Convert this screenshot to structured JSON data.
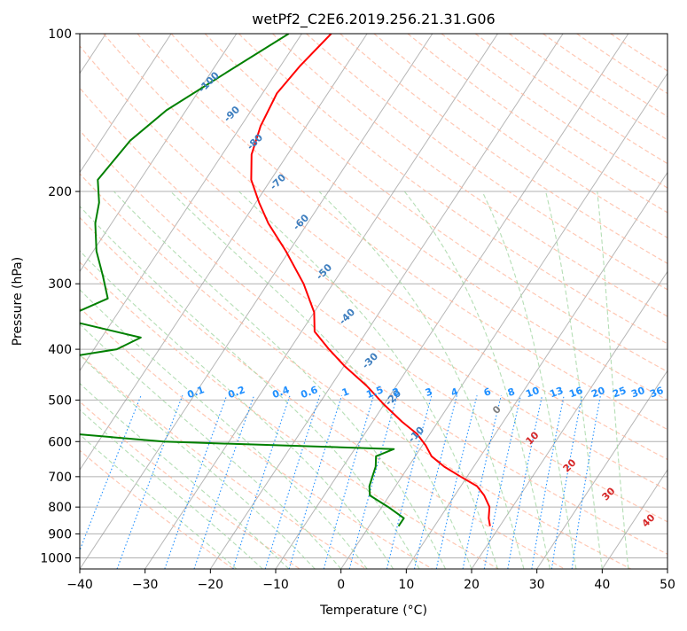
{
  "chart_data": {
    "type": "line",
    "title": "wetPf2_C2E6.2019.256.21.31.G06",
    "xlabel": "Temperature (°C)",
    "ylabel": "Pressure (hPa)",
    "xlim": [
      -40,
      50
    ],
    "ylim": [
      1050,
      100
    ],
    "y_scale": "log",
    "skew": "skew-T",
    "xticks": [
      -40,
      -30,
      -20,
      -10,
      0,
      10,
      20,
      30,
      40,
      50
    ],
    "yticks": [
      100,
      200,
      300,
      400,
      500,
      600,
      700,
      800,
      900,
      1000
    ],
    "grid": true,
    "colors": {
      "temperature": "#ff0000",
      "dewpoint": "#008000",
      "dry_adiabat": "#ffb499",
      "moist_adiabat": "#a8d8a8",
      "mixing_ratio": "#1f8fff",
      "isotherm": "#8f8f8f",
      "saturated_adiabat": "#d2a679"
    },
    "series": [
      {
        "type": "temperature",
        "points": [
          [
            100,
            -55.5
          ],
          [
            115,
            -57.0
          ],
          [
            130,
            -57.8
          ],
          [
            150,
            -57.0
          ],
          [
            170,
            -55.5
          ],
          [
            190,
            -53.0
          ],
          [
            210,
            -49.5
          ],
          [
            230,
            -46.0
          ],
          [
            260,
            -40.5
          ],
          [
            300,
            -34.5
          ],
          [
            340,
            -30.0
          ],
          [
            370,
            -28.0
          ],
          [
            400,
            -24.0
          ],
          [
            430,
            -20.0
          ],
          [
            470,
            -14.5
          ],
          [
            510,
            -10.0
          ],
          [
            550,
            -5.5
          ],
          [
            580,
            -2.0
          ],
          [
            610,
            0.5
          ],
          [
            640,
            2.5
          ],
          [
            670,
            5.5
          ],
          [
            700,
            9.0
          ],
          [
            730,
            12.5
          ],
          [
            760,
            14.5
          ],
          [
            800,
            16.5
          ],
          [
            840,
            17.5
          ],
          [
            870,
            18.5
          ]
        ]
      },
      {
        "type": "dewpoint",
        "points": [
          [
            100,
            -62.0
          ],
          [
            120,
            -68.0
          ],
          [
            140,
            -73.0
          ],
          [
            160,
            -75.5
          ],
          [
            190,
            -76.5
          ],
          [
            210,
            -74.0
          ],
          [
            230,
            -72.5
          ],
          [
            260,
            -69.5
          ],
          [
            290,
            -66.0
          ],
          [
            320,
            -63.0
          ],
          [
            350,
            -68.0
          ],
          [
            380,
            -54.0
          ],
          [
            400,
            -56.5
          ],
          [
            420,
            -66.0
          ],
          [
            450,
            -72.0
          ],
          [
            480,
            -67.0
          ],
          [
            490,
            -64.0
          ],
          [
            510,
            -67.5
          ],
          [
            550,
            -74.0
          ],
          [
            570,
            -62.0
          ],
          [
            600,
            -40.0
          ],
          [
            620,
            -4.0
          ],
          [
            640,
            -6.0
          ],
          [
            670,
            -5.0
          ],
          [
            700,
            -4.5
          ],
          [
            730,
            -4.0
          ],
          [
            760,
            -3.0
          ],
          [
            800,
            1.0
          ],
          [
            840,
            4.5
          ],
          [
            870,
            4.5
          ]
        ]
      }
    ],
    "dry_adiabat_labels": [
      "-100",
      "-90",
      "-80",
      "-70",
      "-60",
      "-50",
      "-40",
      "-30",
      "-20",
      "-10"
    ],
    "mixing_ratio_labels": [
      "0.1",
      "0.2",
      "0.4",
      "0.6",
      "1",
      "1.5",
      "2",
      "3",
      "4",
      "6",
      "8",
      "10",
      "13",
      "16",
      "20",
      "25",
      "30",
      "36"
    ],
    "moist_adiabat_labels": [
      "0",
      "10",
      "20",
      "30",
      "40"
    ]
  }
}
